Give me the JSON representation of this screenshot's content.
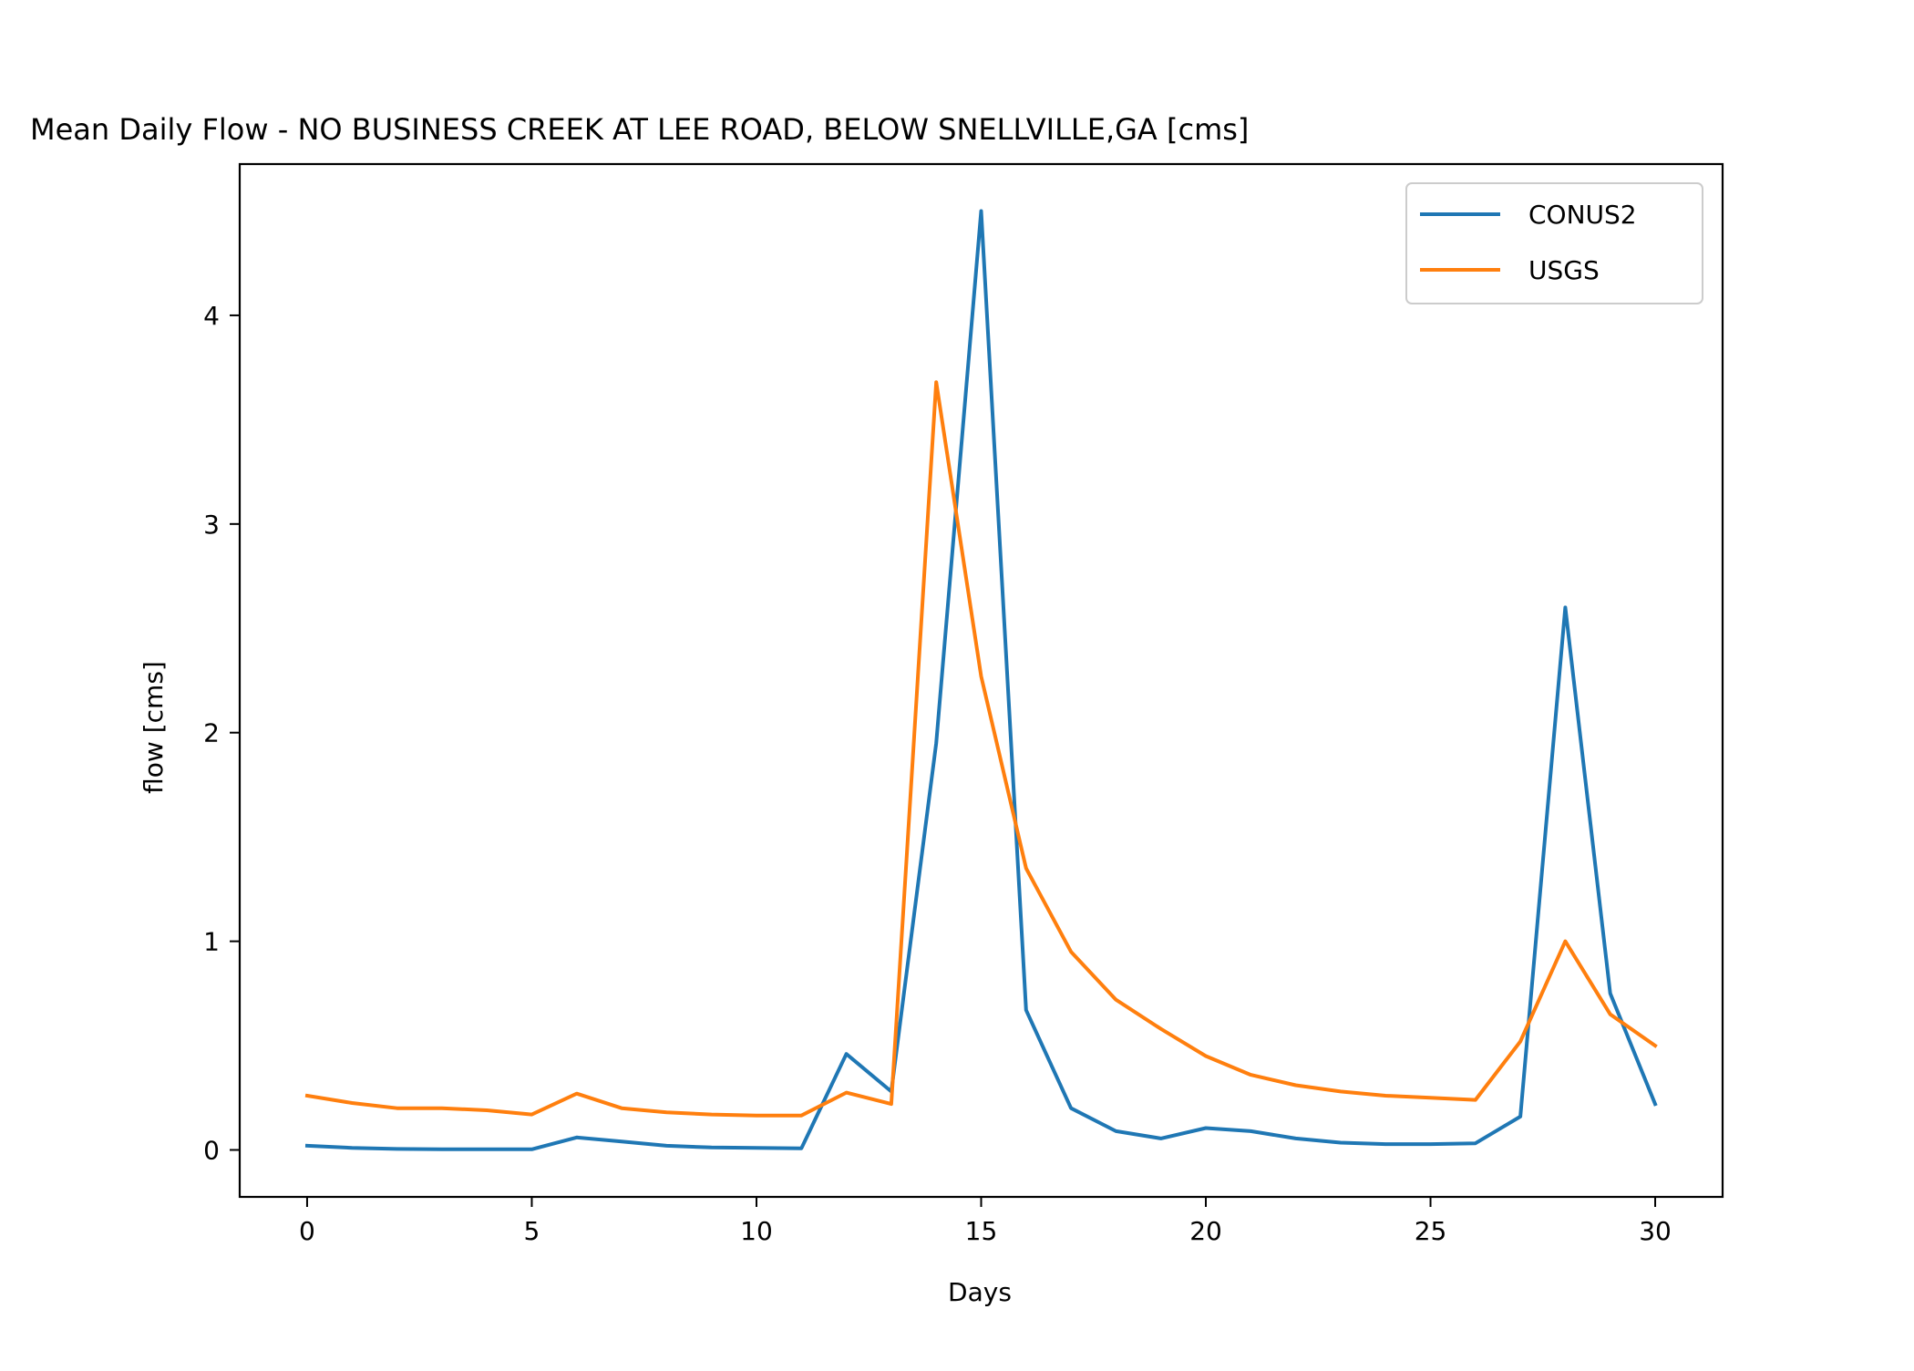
{
  "chart_data": {
    "type": "line",
    "title": "Mean Daily Flow - NO BUSINESS CREEK AT LEE ROAD, BELOW SNELLVILLE,GA [cms]",
    "xlabel": "Days",
    "ylabel": "flow [cms]",
    "xlim": [
      -1.5,
      31.5
    ],
    "ylim": [
      -0.225,
      4.725
    ],
    "xticks": [
      0,
      5,
      10,
      15,
      20,
      25,
      30
    ],
    "yticks": [
      0,
      1,
      2,
      3,
      4
    ],
    "grid": false,
    "legend_position": "top-right",
    "x": [
      0,
      1,
      2,
      3,
      4,
      5,
      6,
      7,
      8,
      9,
      10,
      11,
      12,
      13,
      14,
      15,
      16,
      17,
      18,
      19,
      20,
      21,
      22,
      23,
      24,
      25,
      26,
      27,
      28,
      29,
      30
    ],
    "series": [
      {
        "name": "CONUS2",
        "color": "#1f77b4",
        "values": [
          0.02,
          0.01,
          0.005,
          0.003,
          0.003,
          0.003,
          0.06,
          0.04,
          0.02,
          0.012,
          0.01,
          0.008,
          0.46,
          0.28,
          1.95,
          4.5,
          0.67,
          0.2,
          0.09,
          0.055,
          0.105,
          0.09,
          0.055,
          0.035,
          0.028,
          0.028,
          0.032,
          0.16,
          2.6,
          0.75,
          0.22
        ]
      },
      {
        "name": "USGS",
        "color": "#ff7f0e",
        "values": [
          0.26,
          0.225,
          0.2,
          0.2,
          0.19,
          0.17,
          0.27,
          0.2,
          0.18,
          0.17,
          0.165,
          0.165,
          0.275,
          0.22,
          3.68,
          2.27,
          1.35,
          0.95,
          0.72,
          0.58,
          0.45,
          0.36,
          0.31,
          0.28,
          0.26,
          0.25,
          0.24,
          0.52,
          1.0,
          0.65,
          0.5
        ]
      }
    ]
  }
}
